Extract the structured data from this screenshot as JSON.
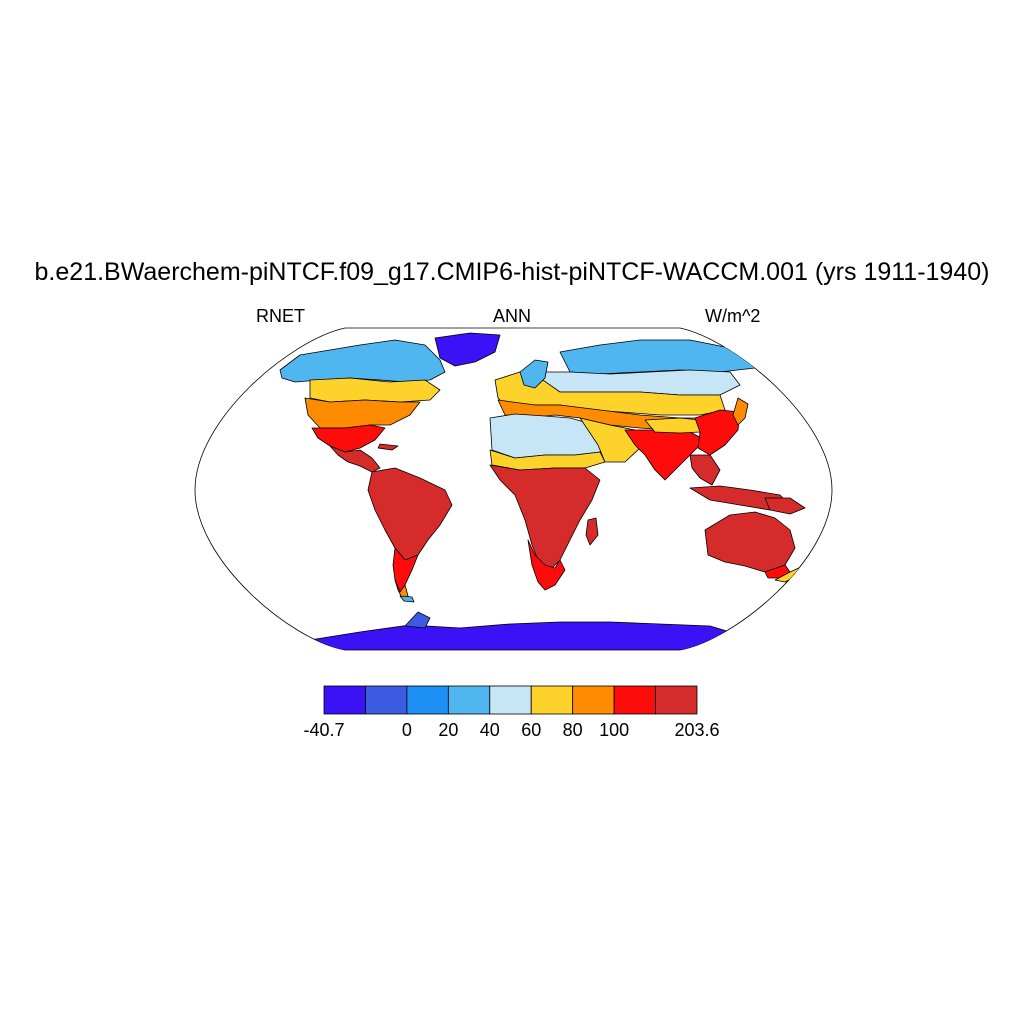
{
  "title": "b.e21.BWaerchem-piNTCF.f09_g17.CMIP6-hist-piNTCF-WACCM.001 (yrs 1911-1940)",
  "left_string": "RNET",
  "center_string": "ANN",
  "right_string": "W/m^2",
  "colorbar": {
    "colors": [
      "#3b12f5",
      "#3b5be3",
      "#1e8ff5",
      "#4fb6f0",
      "#c6e6f7",
      "#fdd22a",
      "#ff8c00",
      "#fe0c0c",
      "#d62b2b"
    ],
    "labels": [
      "-40.7",
      "0",
      "20",
      "40",
      "60",
      "80",
      "100",
      "203.6"
    ]
  },
  "map": {
    "projection": "Robinson",
    "ocean_color": "#ffffff",
    "land_regions": [
      {
        "name": "Greenland",
        "class": "-40.7 to -20"
      },
      {
        "name": "Antarctica",
        "class": "-40.7 to -20"
      },
      {
        "name": "North Canada / Alaska",
        "class": "20 to 40"
      },
      {
        "name": "Siberia",
        "class": "20 to 60"
      },
      {
        "name": "Europe",
        "class": "60 to 80"
      },
      {
        "name": "Sahara / Arabia",
        "class": "60 to 80"
      },
      {
        "name": "Tropical Africa",
        "class": "100 to 203.6"
      },
      {
        "name": "Amazon",
        "class": "100 to 203.6"
      },
      {
        "name": "Australia",
        "class": "100 to 203.6"
      },
      {
        "name": "Southeast Asia",
        "class": "100 to 203.6"
      }
    ]
  }
}
